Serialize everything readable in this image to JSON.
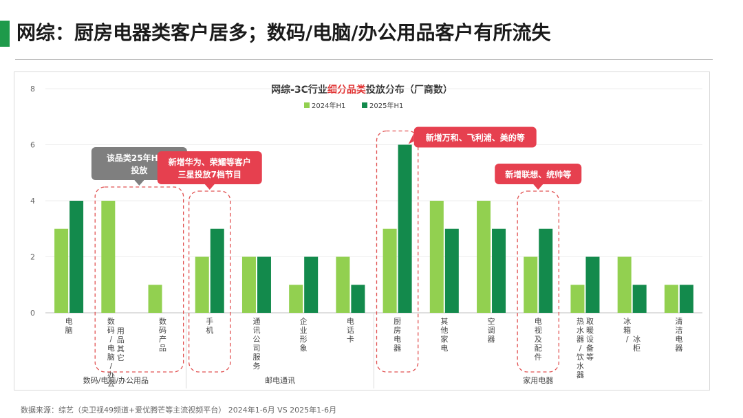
{
  "page": {
    "title": "网综：厨房电器类客户居多；数码/电脑/办公用品客户有所流失",
    "source": "数据来源：综艺（央卫视49频道+爱优腾芒等主流视频平台） 2024年1-6月 VS 2025年1-6月"
  },
  "colors": {
    "accent": "#1e9a4a",
    "series_2024": "#92d050",
    "series_2025": "#138a4c",
    "callout_red": "#e6404f",
    "callout_gray": "#7f7f7f",
    "dash": "#e15050"
  },
  "chart_data": {
    "type": "bar",
    "title_parts": [
      "网综-3C行业",
      "细分品类",
      "投放分布（厂商数）"
    ],
    "ylim": [
      0,
      8
    ],
    "yticks": [
      "0",
      "2",
      "4",
      "6",
      "8"
    ],
    "categories": [
      "电脑",
      "数码用品其它/电脑/办公",
      "数码产品",
      "手机",
      "通讯公司服务",
      "企业形象",
      "电话卡",
      "厨房电器",
      "其他家电",
      "空调器",
      "电视及配件",
      "热水器/饮水器/取暖设备等",
      "冰箱/冰柜",
      "清洁电器"
    ],
    "series": [
      {
        "name": "2024年H1",
        "values": [
          3,
          4,
          1,
          2,
          2,
          1,
          2,
          3,
          4,
          4,
          2,
          1,
          2,
          1
        ]
      },
      {
        "name": "2025年H1",
        "values": [
          4,
          0,
          0,
          3,
          2,
          2,
          1,
          6,
          3,
          3,
          3,
          2,
          1,
          1
        ]
      }
    ],
    "groups": [
      {
        "label": "数码/电脑/办公用品",
        "from": 0,
        "to": 2
      },
      {
        "label": "邮电通讯",
        "from": 3,
        "to": 6
      },
      {
        "label": "家用电器",
        "from": 7,
        "to": 13
      }
    ],
    "annotations": [
      {
        "text": "该品类25年H1未投放",
        "style": "gray",
        "target": [
          1,
          2
        ]
      },
      {
        "text": "新增华为、荣耀等客户三星投放7档节目",
        "style": "red",
        "target": [
          3,
          3
        ]
      },
      {
        "text": "新增万和、飞利浦、美的等",
        "style": "red",
        "target": [
          7,
          7
        ]
      },
      {
        "text": "新增联想、统帅等",
        "style": "red",
        "target": [
          10,
          10
        ]
      }
    ]
  }
}
